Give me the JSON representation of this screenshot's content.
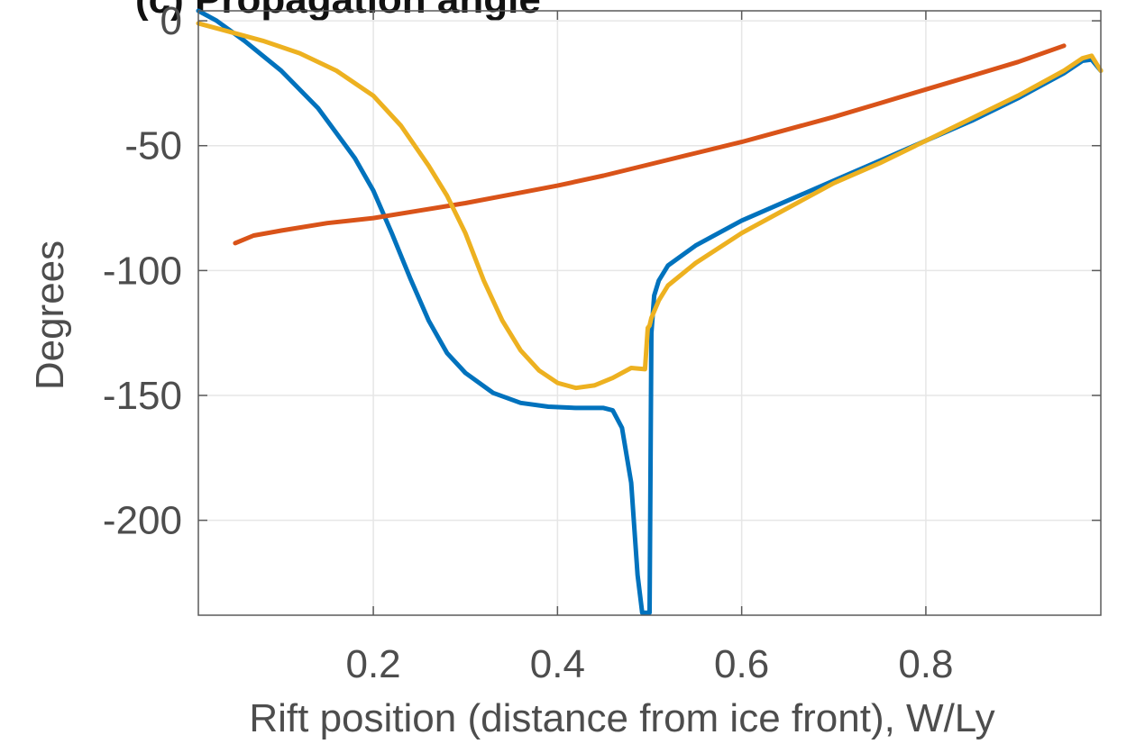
{
  "chart_data": {
    "type": "line",
    "title": "(c) Propagation angle",
    "xlabel": "Rift position (distance from ice front), W/Ly",
    "ylabel": "Degrees",
    "xlim": [
      0.01,
      0.99
    ],
    "ylim": [
      -238,
      4
    ],
    "xticks": [
      0.2,
      0.4,
      0.6,
      0.8
    ],
    "xtick_labels": [
      "0.2",
      "0.4",
      "0.6",
      "0.8"
    ],
    "yticks": [
      0,
      -50,
      -100,
      -150,
      -200
    ],
    "ytick_labels": [
      "0",
      "-50",
      "-100",
      "-150",
      "-200"
    ],
    "grid": true,
    "series": [
      {
        "color": "#0072BD",
        "x": [
          0.01,
          0.03,
          0.06,
          0.1,
          0.14,
          0.18,
          0.2,
          0.22,
          0.24,
          0.26,
          0.28,
          0.3,
          0.33,
          0.36,
          0.39,
          0.42,
          0.45,
          0.46,
          0.47,
          0.48,
          0.487,
          0.492,
          0.495,
          0.498,
          0.5,
          0.502,
          0.505,
          0.51,
          0.52,
          0.55,
          0.6,
          0.65,
          0.7,
          0.75,
          0.8,
          0.85,
          0.9,
          0.95,
          0.97,
          0.98,
          0.99
        ],
        "y": [
          4,
          0,
          -8,
          -20,
          -35,
          -55,
          -68,
          -85,
          -103,
          -120,
          -133,
          -141,
          -149,
          -153,
          -154.5,
          -155,
          -155,
          -156,
          -163,
          -185,
          -222,
          -237,
          -237,
          -237,
          -237,
          -125,
          -110,
          -104,
          -98,
          -90,
          -80,
          -72,
          -64,
          -56,
          -48,
          -40,
          -31,
          -21,
          -16,
          -15.5,
          -20
        ]
      },
      {
        "color": "#D95319",
        "x": [
          0.05,
          0.07,
          0.1,
          0.15,
          0.2,
          0.25,
          0.3,
          0.35,
          0.4,
          0.45,
          0.5,
          0.55,
          0.6,
          0.65,
          0.7,
          0.75,
          0.8,
          0.85,
          0.9,
          0.95
        ],
        "y": [
          -89,
          -86,
          -84,
          -81,
          -79,
          -76,
          -73,
          -69.5,
          -66,
          -62,
          -57.5,
          -53,
          -48.5,
          -43.5,
          -38.5,
          -33,
          -27.5,
          -22,
          -16.5,
          -10
        ]
      },
      {
        "color": "#EDB120",
        "x": [
          0.01,
          0.04,
          0.08,
          0.12,
          0.16,
          0.2,
          0.23,
          0.26,
          0.28,
          0.3,
          0.32,
          0.34,
          0.36,
          0.38,
          0.4,
          0.42,
          0.44,
          0.46,
          0.48,
          0.495,
          0.498,
          0.5,
          0.502,
          0.51,
          0.52,
          0.55,
          0.6,
          0.65,
          0.7,
          0.75,
          0.8,
          0.85,
          0.9,
          0.95,
          0.97,
          0.98,
          0.99
        ],
        "y": [
          -1,
          -4,
          -8,
          -13,
          -20,
          -30,
          -42,
          -58,
          -70,
          -85,
          -104,
          -120,
          -132,
          -140,
          -145,
          -147,
          -146,
          -143,
          -139,
          -139.5,
          -123,
          -122,
          -119,
          -112,
          -106,
          -97,
          -85,
          -75,
          -65,
          -57,
          -48,
          -39,
          -30,
          -20,
          -15,
          -14,
          -20
        ]
      }
    ]
  }
}
